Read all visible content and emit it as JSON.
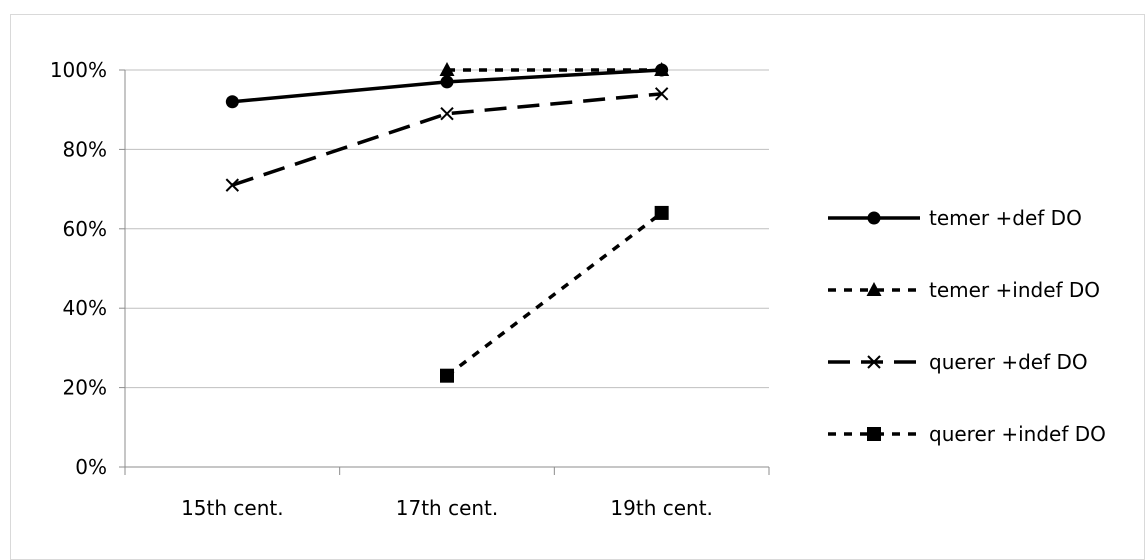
{
  "chart_data": {
    "type": "line",
    "title": "",
    "xlabel": "",
    "ylabel": "",
    "categories": [
      "15th cent.",
      "17th cent.",
      "19th cent."
    ],
    "ylim": [
      0,
      100
    ],
    "yticks": [
      0,
      20,
      40,
      60,
      80,
      100
    ],
    "ytick_labels": [
      "0%",
      "20%",
      "40%",
      "60%",
      "80%",
      "100%"
    ],
    "grid": true,
    "legend_position": "right",
    "series": [
      {
        "name": "temer +def DO",
        "values": [
          92,
          97,
          100
        ],
        "marker": "circle",
        "line": "solid",
        "color": "#000000"
      },
      {
        "name": "temer +indef DO",
        "values": [
          null,
          100,
          100
        ],
        "marker": "triangle",
        "line": "dotted",
        "color": "#000000"
      },
      {
        "name": "querer +def DO",
        "values": [
          71,
          89,
          94
        ],
        "marker": "x",
        "line": "dashed",
        "color": "#000000"
      },
      {
        "name": "querer +indef DO",
        "values": [
          null,
          23,
          64
        ],
        "marker": "square",
        "line": "dotted",
        "color": "#000000"
      }
    ]
  }
}
